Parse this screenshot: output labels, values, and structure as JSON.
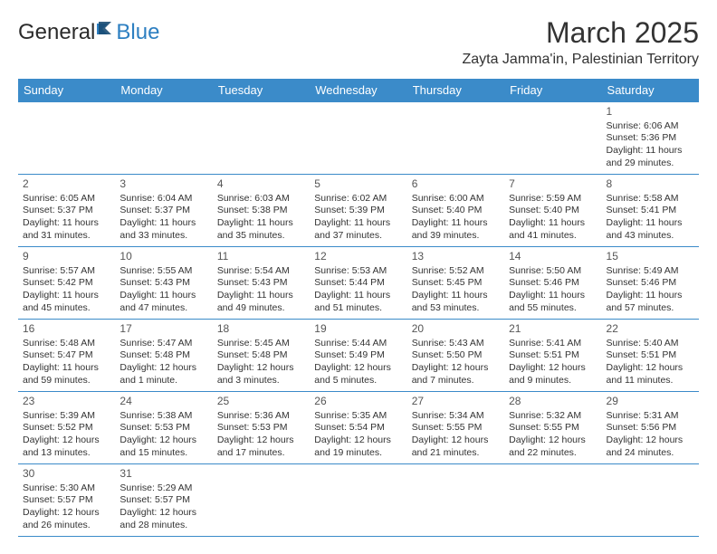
{
  "logo": {
    "part1": "General",
    "part2": "Blue"
  },
  "title": "March 2025",
  "location": "Zayta Jamma'in, Palestinian Territory",
  "colors": {
    "header_bg": "#3b8bc9",
    "header_fg": "#ffffff",
    "border": "#3b8bc9",
    "text": "#333333"
  },
  "day_headers": [
    "Sunday",
    "Monday",
    "Tuesday",
    "Wednesday",
    "Thursday",
    "Friday",
    "Saturday"
  ],
  "weeks": [
    [
      null,
      null,
      null,
      null,
      null,
      null,
      {
        "n": "1",
        "sr": "Sunrise: 6:06 AM",
        "ss": "Sunset: 5:36 PM",
        "dl": "Daylight: 11 hours and 29 minutes."
      }
    ],
    [
      {
        "n": "2",
        "sr": "Sunrise: 6:05 AM",
        "ss": "Sunset: 5:37 PM",
        "dl": "Daylight: 11 hours and 31 minutes."
      },
      {
        "n": "3",
        "sr": "Sunrise: 6:04 AM",
        "ss": "Sunset: 5:37 PM",
        "dl": "Daylight: 11 hours and 33 minutes."
      },
      {
        "n": "4",
        "sr": "Sunrise: 6:03 AM",
        "ss": "Sunset: 5:38 PM",
        "dl": "Daylight: 11 hours and 35 minutes."
      },
      {
        "n": "5",
        "sr": "Sunrise: 6:02 AM",
        "ss": "Sunset: 5:39 PM",
        "dl": "Daylight: 11 hours and 37 minutes."
      },
      {
        "n": "6",
        "sr": "Sunrise: 6:00 AM",
        "ss": "Sunset: 5:40 PM",
        "dl": "Daylight: 11 hours and 39 minutes."
      },
      {
        "n": "7",
        "sr": "Sunrise: 5:59 AM",
        "ss": "Sunset: 5:40 PM",
        "dl": "Daylight: 11 hours and 41 minutes."
      },
      {
        "n": "8",
        "sr": "Sunrise: 5:58 AM",
        "ss": "Sunset: 5:41 PM",
        "dl": "Daylight: 11 hours and 43 minutes."
      }
    ],
    [
      {
        "n": "9",
        "sr": "Sunrise: 5:57 AM",
        "ss": "Sunset: 5:42 PM",
        "dl": "Daylight: 11 hours and 45 minutes."
      },
      {
        "n": "10",
        "sr": "Sunrise: 5:55 AM",
        "ss": "Sunset: 5:43 PM",
        "dl": "Daylight: 11 hours and 47 minutes."
      },
      {
        "n": "11",
        "sr": "Sunrise: 5:54 AM",
        "ss": "Sunset: 5:43 PM",
        "dl": "Daylight: 11 hours and 49 minutes."
      },
      {
        "n": "12",
        "sr": "Sunrise: 5:53 AM",
        "ss": "Sunset: 5:44 PM",
        "dl": "Daylight: 11 hours and 51 minutes."
      },
      {
        "n": "13",
        "sr": "Sunrise: 5:52 AM",
        "ss": "Sunset: 5:45 PM",
        "dl": "Daylight: 11 hours and 53 minutes."
      },
      {
        "n": "14",
        "sr": "Sunrise: 5:50 AM",
        "ss": "Sunset: 5:46 PM",
        "dl": "Daylight: 11 hours and 55 minutes."
      },
      {
        "n": "15",
        "sr": "Sunrise: 5:49 AM",
        "ss": "Sunset: 5:46 PM",
        "dl": "Daylight: 11 hours and 57 minutes."
      }
    ],
    [
      {
        "n": "16",
        "sr": "Sunrise: 5:48 AM",
        "ss": "Sunset: 5:47 PM",
        "dl": "Daylight: 11 hours and 59 minutes."
      },
      {
        "n": "17",
        "sr": "Sunrise: 5:47 AM",
        "ss": "Sunset: 5:48 PM",
        "dl": "Daylight: 12 hours and 1 minute."
      },
      {
        "n": "18",
        "sr": "Sunrise: 5:45 AM",
        "ss": "Sunset: 5:48 PM",
        "dl": "Daylight: 12 hours and 3 minutes."
      },
      {
        "n": "19",
        "sr": "Sunrise: 5:44 AM",
        "ss": "Sunset: 5:49 PM",
        "dl": "Daylight: 12 hours and 5 minutes."
      },
      {
        "n": "20",
        "sr": "Sunrise: 5:43 AM",
        "ss": "Sunset: 5:50 PM",
        "dl": "Daylight: 12 hours and 7 minutes."
      },
      {
        "n": "21",
        "sr": "Sunrise: 5:41 AM",
        "ss": "Sunset: 5:51 PM",
        "dl": "Daylight: 12 hours and 9 minutes."
      },
      {
        "n": "22",
        "sr": "Sunrise: 5:40 AM",
        "ss": "Sunset: 5:51 PM",
        "dl": "Daylight: 12 hours and 11 minutes."
      }
    ],
    [
      {
        "n": "23",
        "sr": "Sunrise: 5:39 AM",
        "ss": "Sunset: 5:52 PM",
        "dl": "Daylight: 12 hours and 13 minutes."
      },
      {
        "n": "24",
        "sr": "Sunrise: 5:38 AM",
        "ss": "Sunset: 5:53 PM",
        "dl": "Daylight: 12 hours and 15 minutes."
      },
      {
        "n": "25",
        "sr": "Sunrise: 5:36 AM",
        "ss": "Sunset: 5:53 PM",
        "dl": "Daylight: 12 hours and 17 minutes."
      },
      {
        "n": "26",
        "sr": "Sunrise: 5:35 AM",
        "ss": "Sunset: 5:54 PM",
        "dl": "Daylight: 12 hours and 19 minutes."
      },
      {
        "n": "27",
        "sr": "Sunrise: 5:34 AM",
        "ss": "Sunset: 5:55 PM",
        "dl": "Daylight: 12 hours and 21 minutes."
      },
      {
        "n": "28",
        "sr": "Sunrise: 5:32 AM",
        "ss": "Sunset: 5:55 PM",
        "dl": "Daylight: 12 hours and 22 minutes."
      },
      {
        "n": "29",
        "sr": "Sunrise: 5:31 AM",
        "ss": "Sunset: 5:56 PM",
        "dl": "Daylight: 12 hours and 24 minutes."
      }
    ],
    [
      {
        "n": "30",
        "sr": "Sunrise: 5:30 AM",
        "ss": "Sunset: 5:57 PM",
        "dl": "Daylight: 12 hours and 26 minutes."
      },
      {
        "n": "31",
        "sr": "Sunrise: 5:29 AM",
        "ss": "Sunset: 5:57 PM",
        "dl": "Daylight: 12 hours and 28 minutes."
      },
      null,
      null,
      null,
      null,
      null
    ]
  ]
}
